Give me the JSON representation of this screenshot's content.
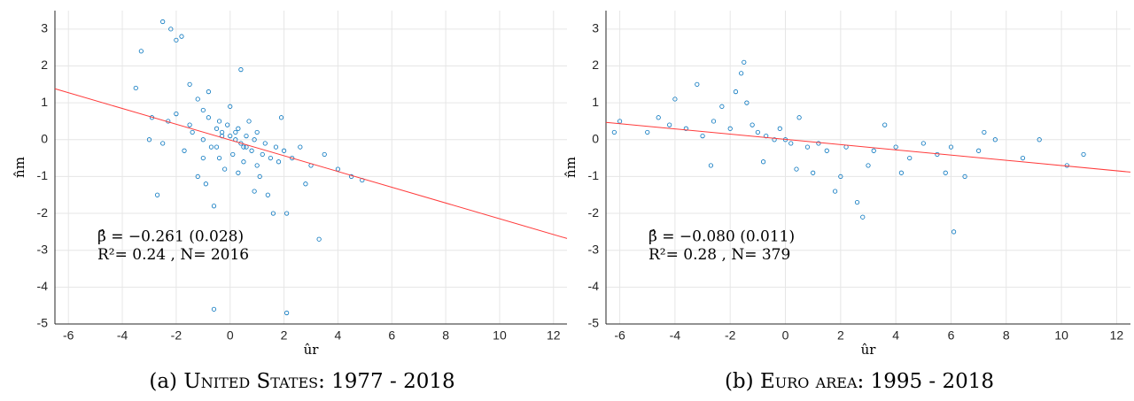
{
  "chart_data": [
    {
      "type": "scatter",
      "caption_prefix": "(a) ",
      "caption": "United States: 1977 - 2018",
      "xlabel": "ûr",
      "ylabel": "n̂m",
      "annotation_1": "β̂ = −0.261 (0.028)",
      "annotation_2": "R²= 0.24 , N= 2016",
      "color": "#0072bd",
      "fit_color": "#ff3b3b",
      "grid": true,
      "xlim": [
        -6.5,
        12.5
      ],
      "ylim": [
        -5,
        3.5
      ],
      "xticks": [
        -6,
        -4,
        -2,
        0,
        2,
        4,
        6,
        8,
        10,
        12
      ],
      "yticks": [
        -5,
        -4,
        -3,
        -2,
        -1,
        0,
        1,
        2,
        3
      ],
      "fit_line": {
        "x": [
          -6.5,
          12.5
        ],
        "y": [
          1.38,
          -2.68
        ]
      },
      "points": [
        [
          -2.5,
          3.2
        ],
        [
          -2.2,
          3.0
        ],
        [
          -2.0,
          2.7
        ],
        [
          -1.8,
          2.8
        ],
        [
          -3.5,
          1.4
        ],
        [
          -3.3,
          2.4
        ],
        [
          -1.5,
          1.5
        ],
        [
          -1.2,
          1.1
        ],
        [
          -1.0,
          0.8
        ],
        [
          -0.8,
          0.6
        ],
        [
          -0.5,
          0.3
        ],
        [
          -0.3,
          0.2
        ],
        [
          0.0,
          0.1
        ],
        [
          0.2,
          0.0
        ],
        [
          0.4,
          -0.1
        ],
        [
          0.6,
          -0.2
        ],
        [
          0.8,
          -0.3
        ],
        [
          1.0,
          0.2
        ],
        [
          1.2,
          -0.4
        ],
        [
          1.5,
          -0.5
        ],
        [
          1.8,
          -0.6
        ],
        [
          2.0,
          -0.3
        ],
        [
          2.3,
          -0.5
        ],
        [
          2.6,
          -0.2
        ],
        [
          3.0,
          -0.7
        ],
        [
          3.5,
          -0.4
        ],
        [
          4.0,
          -0.8
        ],
        [
          4.5,
          -1.0
        ],
        [
          4.9,
          -1.1
        ],
        [
          -0.7,
          -0.2
        ],
        [
          -0.4,
          0.5
        ],
        [
          0.1,
          -0.4
        ],
        [
          0.3,
          0.3
        ],
        [
          0.5,
          -0.6
        ],
        [
          -1.0,
          -0.5
        ],
        [
          -1.5,
          0.4
        ],
        [
          -2.0,
          0.7
        ],
        [
          -0.2,
          -0.8
        ],
        [
          0.0,
          0.9
        ],
        [
          0.7,
          0.5
        ],
        [
          1.1,
          -1.0
        ],
        [
          1.4,
          -1.5
        ],
        [
          -0.9,
          -1.2
        ],
        [
          -0.6,
          -1.8
        ],
        [
          0.9,
          -1.4
        ],
        [
          1.6,
          -2.0
        ],
        [
          2.1,
          -2.0
        ],
        [
          -2.7,
          -1.5
        ],
        [
          -2.9,
          0.6
        ],
        [
          -1.7,
          -0.3
        ],
        [
          -0.5,
          -0.2
        ],
        [
          0.2,
          0.2
        ],
        [
          -0.3,
          0.1
        ],
        [
          0.6,
          0.1
        ],
        [
          1.3,
          -0.1
        ],
        [
          2.8,
          -1.2
        ],
        [
          3.3,
          -2.7
        ],
        [
          -1.2,
          -1.0
        ],
        [
          -0.8,
          1.3
        ],
        [
          0.4,
          1.9
        ],
        [
          -0.6,
          -4.6
        ],
        [
          2.1,
          -4.7
        ],
        [
          -2.3,
          0.5
        ],
        [
          -1.0,
          0.0
        ],
        [
          0.5,
          -0.2
        ],
        [
          1.9,
          0.6
        ],
        [
          -3.0,
          0.0
        ],
        [
          -2.5,
          -0.1
        ],
        [
          0.3,
          -0.9
        ],
        [
          1.0,
          -0.7
        ],
        [
          -1.4,
          0.2
        ],
        [
          -0.1,
          0.4
        ],
        [
          0.9,
          0.0
        ],
        [
          -0.4,
          -0.5
        ],
        [
          1.7,
          -0.2
        ]
      ]
    },
    {
      "type": "scatter",
      "caption_prefix": "(b) ",
      "caption": "Euro area: 1995 - 2018",
      "xlabel": "ûr",
      "ylabel": "n̂m",
      "annotation_1": "β̂ = −0.080 (0.011)",
      "annotation_2": "R²= 0.28 , N= 379",
      "color": "#0072bd",
      "fit_color": "#ff3b3b",
      "grid": true,
      "xlim": [
        -6.5,
        12.5
      ],
      "ylim": [
        -5,
        3.5
      ],
      "xticks": [
        -6,
        -4,
        -2,
        0,
        2,
        4,
        6,
        8,
        10,
        12
      ],
      "yticks": [
        -5,
        -4,
        -3,
        -2,
        -1,
        0,
        1,
        2,
        3
      ],
      "fit_line": {
        "x": [
          -6.5,
          12.5
        ],
        "y": [
          0.47,
          -0.88
        ]
      },
      "points": [
        [
          -6.2,
          0.2
        ],
        [
          -6.0,
          0.5
        ],
        [
          -5.0,
          0.2
        ],
        [
          -4.6,
          0.6
        ],
        [
          -4.2,
          0.4
        ],
        [
          -4.0,
          1.1
        ],
        [
          -3.6,
          0.3
        ],
        [
          -3.2,
          1.5
        ],
        [
          -3.0,
          0.1
        ],
        [
          -2.6,
          0.5
        ],
        [
          -2.3,
          0.9
        ],
        [
          -2.0,
          0.3
        ],
        [
          -1.8,
          1.3
        ],
        [
          -1.6,
          1.8
        ],
        [
          -1.5,
          2.1
        ],
        [
          -1.4,
          1.0
        ],
        [
          -1.2,
          0.4
        ],
        [
          -1.0,
          0.2
        ],
        [
          -0.7,
          0.1
        ],
        [
          -0.4,
          0.0
        ],
        [
          -0.2,
          0.3
        ],
        [
          0.0,
          0.0
        ],
        [
          0.2,
          -0.1
        ],
        [
          0.5,
          0.6
        ],
        [
          0.8,
          -0.2
        ],
        [
          1.2,
          -0.1
        ],
        [
          1.5,
          -0.3
        ],
        [
          1.8,
          -1.4
        ],
        [
          2.2,
          -0.2
        ],
        [
          2.6,
          -1.7
        ],
        [
          2.8,
          -2.1
        ],
        [
          3.2,
          -0.3
        ],
        [
          3.6,
          0.4
        ],
        [
          4.0,
          -0.2
        ],
        [
          4.5,
          -0.5
        ],
        [
          5.0,
          -0.1
        ],
        [
          5.5,
          -0.4
        ],
        [
          6.0,
          -0.2
        ],
        [
          6.1,
          -2.5
        ],
        [
          6.5,
          -1.0
        ],
        [
          7.0,
          -0.3
        ],
        [
          7.2,
          0.2
        ],
        [
          7.6,
          0.0
        ],
        [
          8.6,
          -0.5
        ],
        [
          9.2,
          0.0
        ],
        [
          10.2,
          -0.7
        ],
        [
          10.8,
          -0.4
        ],
        [
          -2.7,
          -0.7
        ],
        [
          -0.8,
          -0.6
        ],
        [
          0.4,
          -0.8
        ],
        [
          1.0,
          -0.9
        ],
        [
          2.0,
          -1.0
        ],
        [
          3.0,
          -0.7
        ],
        [
          4.2,
          -0.9
        ],
        [
          5.8,
          -0.9
        ]
      ]
    }
  ]
}
